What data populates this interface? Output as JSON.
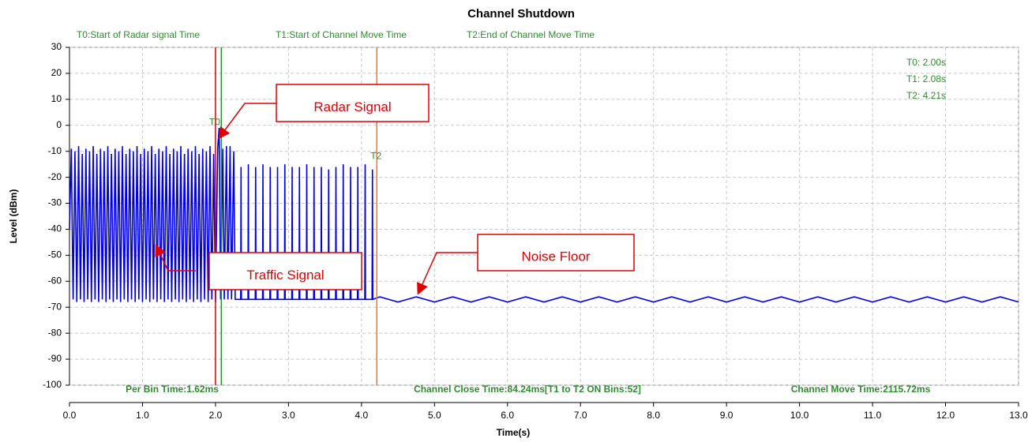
{
  "chart_data": {
    "type": "line",
    "title": "Channel Shutdown",
    "xlabel": "Time(s)",
    "ylabel": "Level (dBm)",
    "xlim": [
      0,
      13
    ],
    "ylim": [
      -100,
      30
    ],
    "xticks": [
      {
        "value": 0,
        "label": "0.0"
      },
      {
        "value": 1,
        "label": "1.0"
      },
      {
        "value": 2,
        "label": "2.0"
      },
      {
        "value": 3,
        "label": "3.0"
      },
      {
        "value": 4,
        "label": "4.0"
      },
      {
        "value": 5,
        "label": "5.0"
      },
      {
        "value": 6,
        "label": "6.0"
      },
      {
        "value": 7,
        "label": "7.0"
      },
      {
        "value": 8,
        "label": "8.0"
      },
      {
        "value": 9,
        "label": "9.0"
      },
      {
        "value": 10,
        "label": "10.0"
      },
      {
        "value": 11,
        "label": "11.0"
      },
      {
        "value": 12,
        "label": "12.0"
      },
      {
        "value": 13,
        "label": "13.0"
      }
    ],
    "yticks": [
      30,
      20,
      10,
      0,
      -10,
      -20,
      -30,
      -40,
      -50,
      -60,
      -70,
      -80,
      -90,
      -100
    ],
    "grid": true,
    "x": [
      0,
      0.025,
      0.05,
      0.075,
      0.1,
      0.125,
      0.15,
      0.175,
      0.2,
      0.225,
      0.25,
      0.275,
      0.3,
      0.325,
      0.35,
      0.375,
      0.4,
      0.425,
      0.45,
      0.475,
      0.5,
      0.525,
      0.55,
      0.575,
      0.6,
      0.625,
      0.65,
      0.675,
      0.7,
      0.725,
      0.75,
      0.775,
      0.8,
      0.825,
      0.85,
      0.875,
      0.9,
      0.925,
      0.95,
      0.975,
      1,
      1.025,
      1.05,
      1.075,
      1.1,
      1.125,
      1.15,
      1.175,
      1.2,
      1.225,
      1.25,
      1.275,
      1.3,
      1.325,
      1.35,
      1.375,
      1.4,
      1.425,
      1.45,
      1.475,
      1.5,
      1.525,
      1.55,
      1.575,
      1.6,
      1.625,
      1.65,
      1.675,
      1.7,
      1.725,
      1.75,
      1.775,
      1.8,
      1.825,
      1.85,
      1.875,
      1.9,
      1.925,
      1.95,
      1.975,
      2,
      2.03,
      2.05,
      2.07,
      2.1,
      2.12,
      2.15,
      2.17,
      2.2,
      2.22,
      2.25,
      2.27,
      2.345,
      2.35,
      2.355,
      2.445,
      2.45,
      2.455,
      2.545,
      2.55,
      2.555,
      2.645,
      2.65,
      2.655,
      2.745,
      2.75,
      2.755,
      2.845,
      2.85,
      2.855,
      2.945,
      2.95,
      2.955,
      3.045,
      3.05,
      3.055,
      3.145,
      3.15,
      3.155,
      3.245,
      3.25,
      3.255,
      3.345,
      3.35,
      3.355,
      3.445,
      3.45,
      3.455,
      3.545,
      3.55,
      3.555,
      3.645,
      3.65,
      3.655,
      3.745,
      3.75,
      3.755,
      3.845,
      3.85,
      3.855,
      3.945,
      3.95,
      3.955,
      4.045,
      4.05,
      4.055,
      4.145,
      4.15,
      4.155,
      4.25,
      4.5,
      4.75,
      5,
      5.25,
      5.5,
      5.75,
      6,
      6.25,
      6.5,
      6.75,
      7,
      7.25,
      7.5,
      7.75,
      8,
      8.25,
      8.5,
      8.75,
      9,
      9.25,
      9.5,
      9.75,
      10,
      10.25,
      10.5,
      10.75,
      11,
      11.25,
      11.5,
      11.75,
      12,
      12.25,
      12.5,
      12.75,
      13
    ],
    "series": [
      {
        "color": "#0000e6",
        "values": [
          -40,
          -9,
          -67,
          -10,
          -68,
          -8,
          -67,
          -11,
          -68,
          -9,
          -67,
          -10,
          -68,
          -8,
          -67,
          -11,
          -68,
          -9,
          -67,
          -10,
          -68,
          -8,
          -67,
          -11,
          -68,
          -9,
          -67,
          -10,
          -68,
          -8,
          -67,
          -11,
          -68,
          -9,
          -67,
          -10,
          -68,
          -8,
          -67,
          -11,
          -68,
          -9,
          -67,
          -10,
          -68,
          -8,
          -67,
          -11,
          -68,
          -9,
          -67,
          -10,
          -68,
          -8,
          -67,
          -11,
          -68,
          -9,
          -67,
          -10,
          -68,
          -8,
          -67,
          -11,
          -68,
          -9,
          -67,
          -10,
          -68,
          -8,
          -67,
          -11,
          -68,
          -9,
          -67,
          -10,
          -68,
          -8,
          -67,
          -11,
          -68,
          -9,
          -1,
          -67,
          -9,
          -67,
          -8,
          -67,
          -8,
          -67,
          -10,
          -67,
          -67,
          -16,
          -67,
          -67,
          -15,
          -67,
          -67,
          -16,
          -67,
          -67,
          -15,
          -67,
          -67,
          -16,
          -67,
          -67,
          -16,
          -67,
          -67,
          -15,
          -67,
          -67,
          -16,
          -67,
          -67,
          -16,
          -67,
          -67,
          -15,
          -67,
          -67,
          -16,
          -67,
          -67,
          -16,
          -67,
          -67,
          -17,
          -67,
          -67,
          -16,
          -67,
          -67,
          -15,
          -67,
          -67,
          -16,
          -67,
          -67,
          -16,
          -67,
          -67,
          -15,
          -67,
          -67,
          -17,
          -67,
          -66,
          -68,
          -66,
          -68,
          -66,
          -68,
          -66,
          -68,
          -66,
          -68,
          -66,
          -68,
          -66,
          -68,
          -66,
          -68,
          -66,
          -68,
          -66,
          -68,
          -66,
          -68,
          -66,
          -68,
          -66,
          -68,
          -66,
          -68,
          -66,
          -68,
          -66,
          -68,
          -66,
          -68,
          -66,
          -68
        ]
      }
    ],
    "markers": [
      {
        "x": 2.0,
        "color": "#e00000",
        "label": "T0:Start of Radar signal Time",
        "readout": "T0: 2.00s",
        "tag": "T0",
        "tag_y": -2
      },
      {
        "x": 2.08,
        "color": "#2e8b2e",
        "label": "T1:Start of Channel Move Time",
        "readout": "T1: 2.08s"
      },
      {
        "x": 4.21,
        "color": "#f07820",
        "label": "T2:End of Channel Move Time",
        "readout": "T2: 4.21s",
        "tag": "T2",
        "tag_y": -15
      }
    ],
    "footer": [
      "Per Bin Time:1.62ms",
      "Channel Close Time:84.24ms[T1 to T2 ON Bins:52]",
      "Channel Move Time:2115.72ms"
    ],
    "annotations": [
      "Radar Signal",
      "Traffic Signal",
      "Noise Floor"
    ]
  }
}
